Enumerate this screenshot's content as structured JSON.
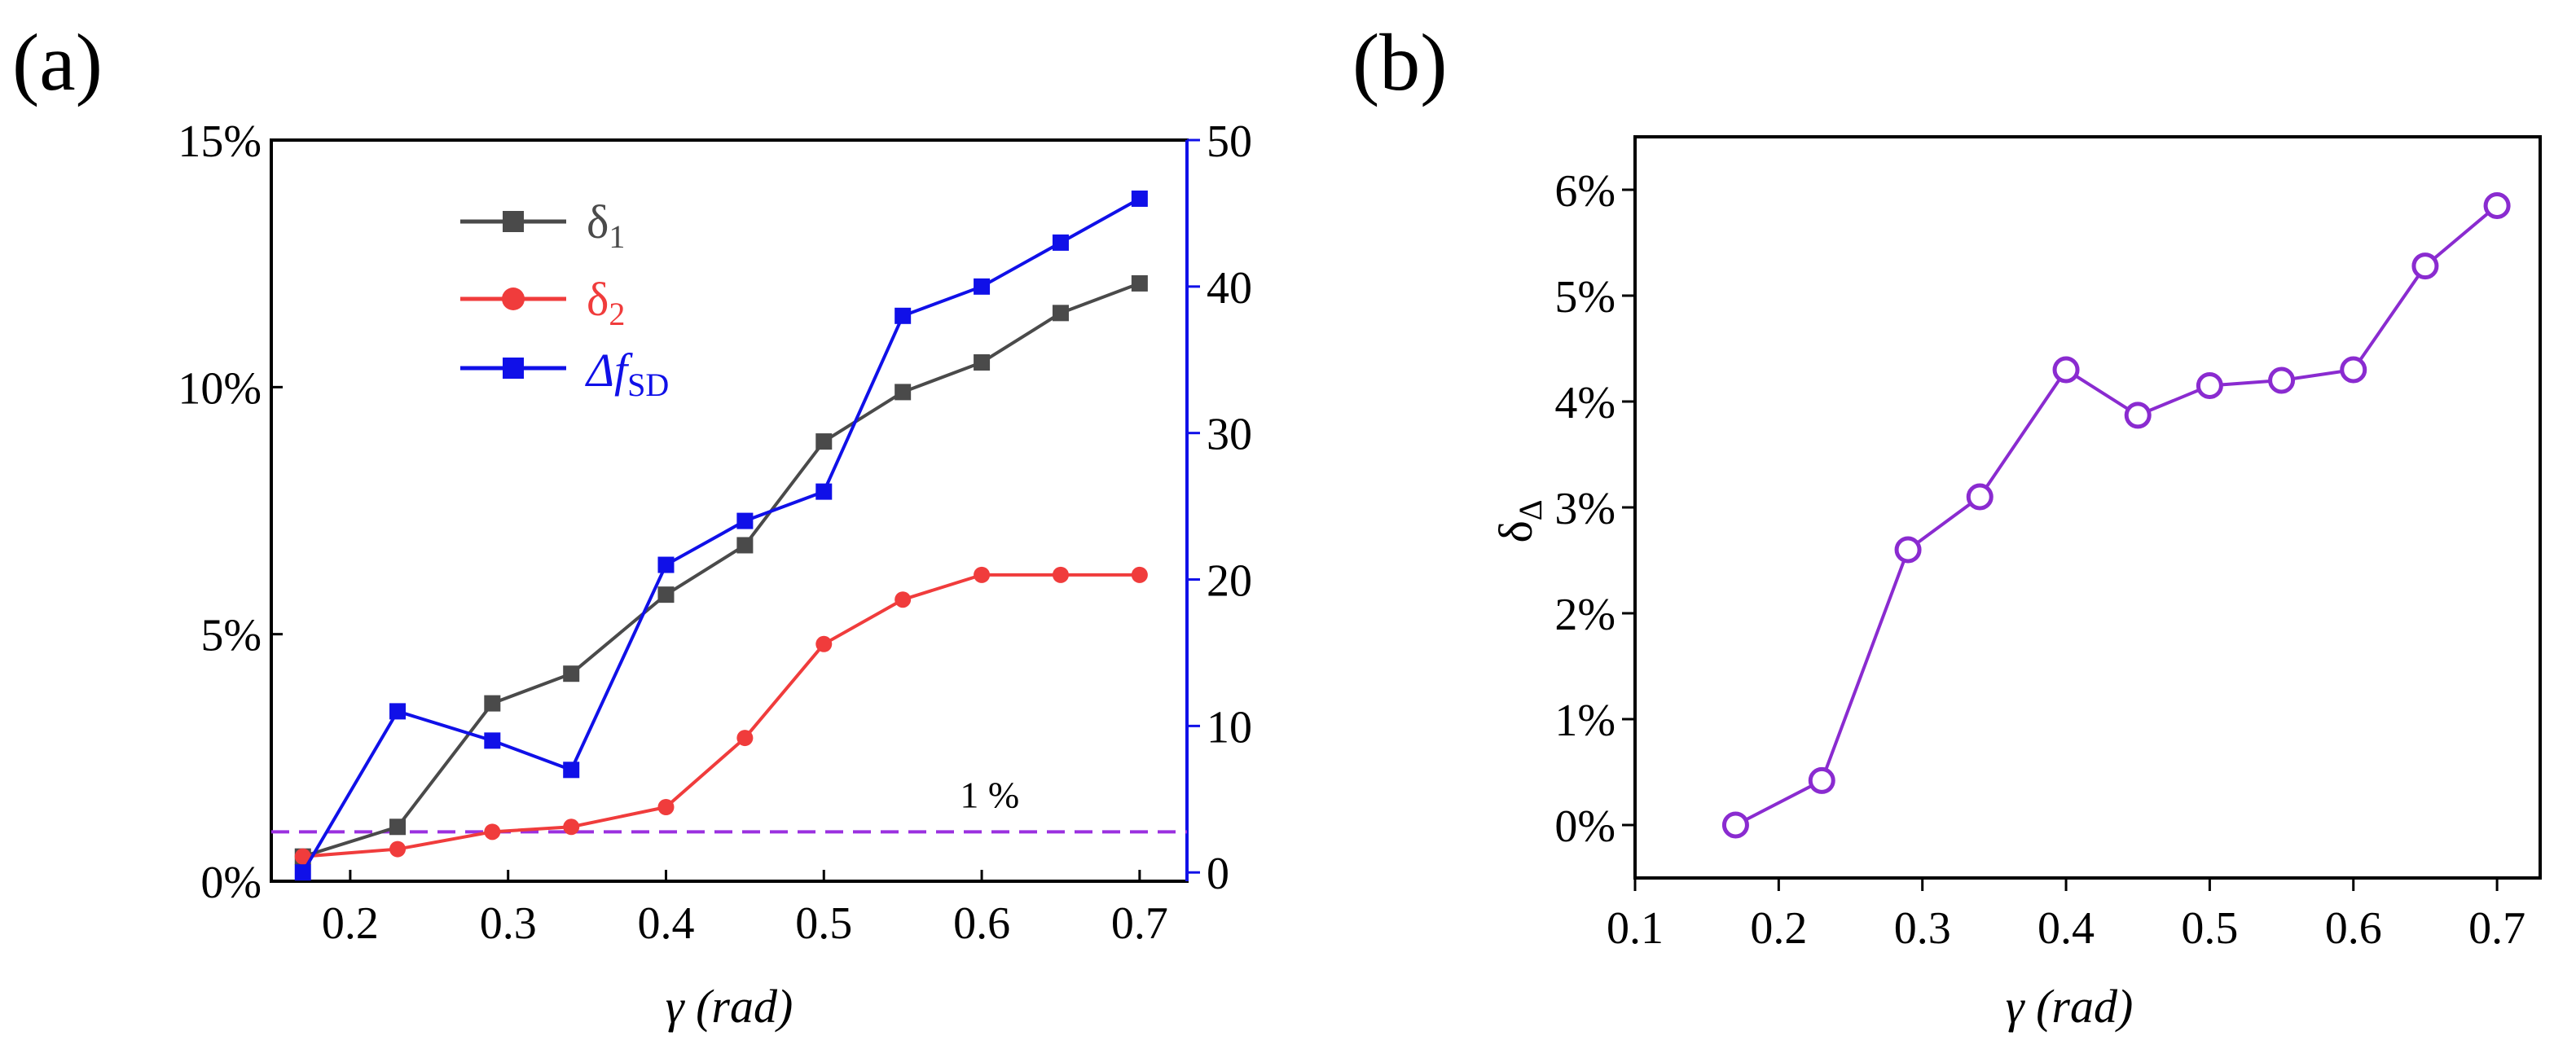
{
  "chart_data": [
    {
      "panel_label": "(a)",
      "type": "line",
      "x": [
        0.17,
        0.23,
        0.29,
        0.34,
        0.4,
        0.45,
        0.5,
        0.55,
        0.6,
        0.65,
        0.7
      ],
      "xlim": [
        0.15,
        0.73
      ],
      "xticks": [
        "0.2",
        "0.3",
        "0.4",
        "0.5",
        "0.6",
        "0.7"
      ],
      "xtick_values": [
        0.2,
        0.3,
        0.4,
        0.5,
        0.6,
        0.7
      ],
      "xlabel": "γ  (rad)",
      "ylim": [
        0,
        15
      ],
      "yticks": [
        "0%",
        "5%",
        "10%",
        "15%"
      ],
      "ytick_values": [
        0,
        5,
        10,
        15
      ],
      "y2lim": [
        -0.6,
        50
      ],
      "y2ticks": [
        "0",
        "10",
        "20",
        "30",
        "40",
        "50"
      ],
      "y2tick_values": [
        0,
        10,
        20,
        30,
        40,
        50
      ],
      "series": [
        {
          "name": "δ",
          "sub": "1",
          "axis": "left",
          "color": "#4a4a4a",
          "marker": "square",
          "values": [
            0.5,
            1.1,
            3.6,
            4.2,
            5.8,
            6.8,
            8.9,
            9.9,
            10.5,
            11.5,
            12.1
          ]
        },
        {
          "name": "δ",
          "sub": "2",
          "axis": "left",
          "color": "#f03c3c",
          "marker": "circle",
          "values": [
            0.5,
            0.65,
            1.0,
            1.1,
            1.5,
            2.9,
            4.8,
            5.7,
            6.2,
            6.2,
            6.2
          ]
        },
        {
          "name": "Δf",
          "sub": "SD",
          "axis": "right",
          "color": "#1010e8",
          "marker": "square",
          "values": [
            0,
            11,
            9,
            7,
            21,
            24,
            26,
            38,
            40,
            43,
            46
          ]
        }
      ],
      "reference_line": {
        "value": 1,
        "label": "1 %",
        "color": "#9b30e0",
        "style": "dashed"
      }
    },
    {
      "panel_label": "(b)",
      "type": "line",
      "x": [
        0.17,
        0.23,
        0.29,
        0.34,
        0.4,
        0.45,
        0.5,
        0.55,
        0.6,
        0.65,
        0.7
      ],
      "xlim": [
        0.1,
        0.73
      ],
      "xticks": [
        "0.1",
        "0.2",
        "0.3",
        "0.4",
        "0.5",
        "0.6",
        "0.7"
      ],
      "xtick_values": [
        0.1,
        0.2,
        0.3,
        0.4,
        0.5,
        0.6,
        0.7
      ],
      "xlabel": "γ (rad)",
      "ylabel": "δ",
      "ylabel_sub": "Δ",
      "ylim": [
        -0.5,
        6.5
      ],
      "yticks": [
        "0%",
        "1%",
        "2%",
        "3%",
        "4%",
        "5%",
        "6%"
      ],
      "ytick_values": [
        0,
        1,
        2,
        3,
        4,
        5,
        6
      ],
      "series": [
        {
          "name": "δΔ",
          "color": "#8a2bd0",
          "marker": "open-circle",
          "values": [
            0.0,
            0.42,
            2.6,
            3.1,
            4.3,
            3.87,
            4.15,
            4.2,
            4.3,
            5.28,
            5.85
          ]
        }
      ]
    }
  ]
}
